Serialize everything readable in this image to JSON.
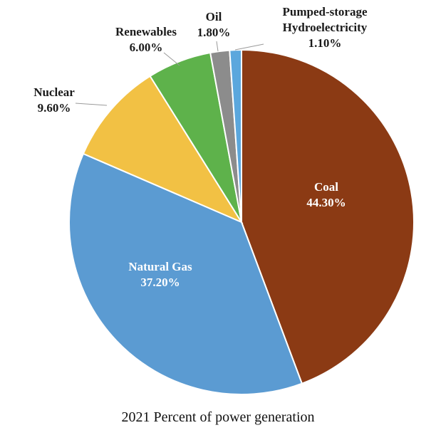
{
  "chart_data": {
    "type": "pie",
    "title": "2021 Percent of power generation",
    "categories": [
      "Coal",
      "Natural Gas",
      "Nuclear",
      "Renewables",
      "Oil",
      "Pumped-storage Hydroelectricity"
    ],
    "values": [
      44.3,
      37.2,
      9.6,
      6.0,
      1.8,
      1.1
    ],
    "labels": [
      "44.30%",
      "37.20%",
      "9.60%",
      "6.00%",
      "1.80%",
      "1.10%"
    ],
    "colors": [
      "#8B3A14",
      "#5B9BD2",
      "#F2C144",
      "#5EB24B",
      "#8C8C8C",
      "#5BA7DD"
    ],
    "legend": "none (labels on/next to slices)"
  }
}
